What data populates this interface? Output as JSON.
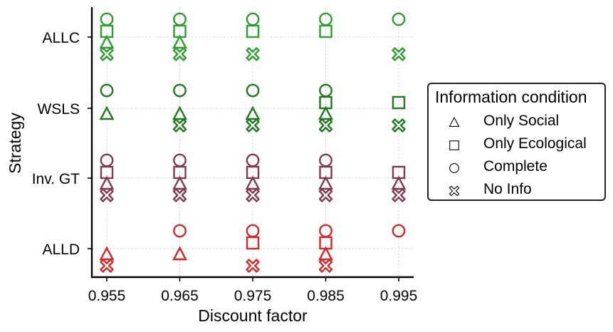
{
  "chart_data": {
    "type": "scatter",
    "title": "",
    "xlabel": "Discount factor",
    "ylabel": "Strategy",
    "x": [
      0.955,
      0.965,
      0.975,
      0.985,
      0.995
    ],
    "x_tick_labels": [
      "0.955",
      "0.965",
      "0.975",
      "0.985",
      "0.995"
    ],
    "categories": [
      "ALLC",
      "WSLS",
      "Inv. GT",
      "ALLD"
    ],
    "grid": true,
    "legend": {
      "title": "Information condition",
      "placement": "right, outside plot",
      "entries": [
        "Only Social",
        "Only Ecological",
        "Complete",
        "No Info"
      ]
    },
    "strategy_colors": {
      "ALLC": "#2ca02c",
      "WSLS": "#1e7a1e",
      "Inv. GT": "#7f3b4d",
      "ALLD": "#d62728"
    },
    "series": [
      {
        "name": "Complete",
        "marker": "circle",
        "points": [
          {
            "x": 0.955,
            "strategy": "ALLC"
          },
          {
            "x": 0.965,
            "strategy": "ALLC"
          },
          {
            "x": 0.975,
            "strategy": "ALLC"
          },
          {
            "x": 0.985,
            "strategy": "ALLC"
          },
          {
            "x": 0.995,
            "strategy": "ALLC"
          },
          {
            "x": 0.955,
            "strategy": "WSLS"
          },
          {
            "x": 0.965,
            "strategy": "WSLS"
          },
          {
            "x": 0.975,
            "strategy": "WSLS"
          },
          {
            "x": 0.985,
            "strategy": "WSLS"
          },
          {
            "x": 0.955,
            "strategy": "Inv. GT"
          },
          {
            "x": 0.965,
            "strategy": "Inv. GT"
          },
          {
            "x": 0.975,
            "strategy": "Inv. GT"
          },
          {
            "x": 0.985,
            "strategy": "Inv. GT"
          },
          {
            "x": 0.965,
            "strategy": "ALLD"
          },
          {
            "x": 0.975,
            "strategy": "ALLD"
          },
          {
            "x": 0.985,
            "strategy": "ALLD"
          },
          {
            "x": 0.995,
            "strategy": "ALLD"
          }
        ]
      },
      {
        "name": "Only Ecological",
        "marker": "square",
        "points": [
          {
            "x": 0.955,
            "strategy": "ALLC"
          },
          {
            "x": 0.965,
            "strategy": "ALLC"
          },
          {
            "x": 0.975,
            "strategy": "ALLC"
          },
          {
            "x": 0.985,
            "strategy": "ALLC"
          },
          {
            "x": 0.985,
            "strategy": "WSLS"
          },
          {
            "x": 0.995,
            "strategy": "WSLS"
          },
          {
            "x": 0.955,
            "strategy": "Inv. GT"
          },
          {
            "x": 0.965,
            "strategy": "Inv. GT"
          },
          {
            "x": 0.975,
            "strategy": "Inv. GT"
          },
          {
            "x": 0.985,
            "strategy": "Inv. GT"
          },
          {
            "x": 0.995,
            "strategy": "Inv. GT"
          },
          {
            "x": 0.975,
            "strategy": "ALLD"
          },
          {
            "x": 0.985,
            "strategy": "ALLD"
          }
        ]
      },
      {
        "name": "Only Social",
        "marker": "triangle",
        "points": [
          {
            "x": 0.955,
            "strategy": "ALLC"
          },
          {
            "x": 0.965,
            "strategy": "ALLC"
          },
          {
            "x": 0.955,
            "strategy": "WSLS"
          },
          {
            "x": 0.965,
            "strategy": "WSLS"
          },
          {
            "x": 0.975,
            "strategy": "WSLS"
          },
          {
            "x": 0.985,
            "strategy": "WSLS"
          },
          {
            "x": 0.955,
            "strategy": "Inv. GT"
          },
          {
            "x": 0.965,
            "strategy": "Inv. GT"
          },
          {
            "x": 0.975,
            "strategy": "Inv. GT"
          },
          {
            "x": 0.985,
            "strategy": "Inv. GT"
          },
          {
            "x": 0.995,
            "strategy": "Inv. GT"
          },
          {
            "x": 0.955,
            "strategy": "ALLD"
          },
          {
            "x": 0.965,
            "strategy": "ALLD"
          },
          {
            "x": 0.985,
            "strategy": "ALLD"
          }
        ]
      },
      {
        "name": "No Info",
        "marker": "cross",
        "points": [
          {
            "x": 0.955,
            "strategy": "ALLC"
          },
          {
            "x": 0.965,
            "strategy": "ALLC"
          },
          {
            "x": 0.975,
            "strategy": "ALLC"
          },
          {
            "x": 0.995,
            "strategy": "ALLC"
          },
          {
            "x": 0.965,
            "strategy": "WSLS"
          },
          {
            "x": 0.975,
            "strategy": "WSLS"
          },
          {
            "x": 0.985,
            "strategy": "WSLS"
          },
          {
            "x": 0.995,
            "strategy": "WSLS"
          },
          {
            "x": 0.955,
            "strategy": "Inv. GT"
          },
          {
            "x": 0.965,
            "strategy": "Inv. GT"
          },
          {
            "x": 0.975,
            "strategy": "Inv. GT"
          },
          {
            "x": 0.985,
            "strategy": "Inv. GT"
          },
          {
            "x": 0.995,
            "strategy": "Inv. GT"
          },
          {
            "x": 0.955,
            "strategy": "ALLD"
          },
          {
            "x": 0.975,
            "strategy": "ALLD"
          },
          {
            "x": 0.985,
            "strategy": "ALLD"
          }
        ]
      }
    ]
  }
}
